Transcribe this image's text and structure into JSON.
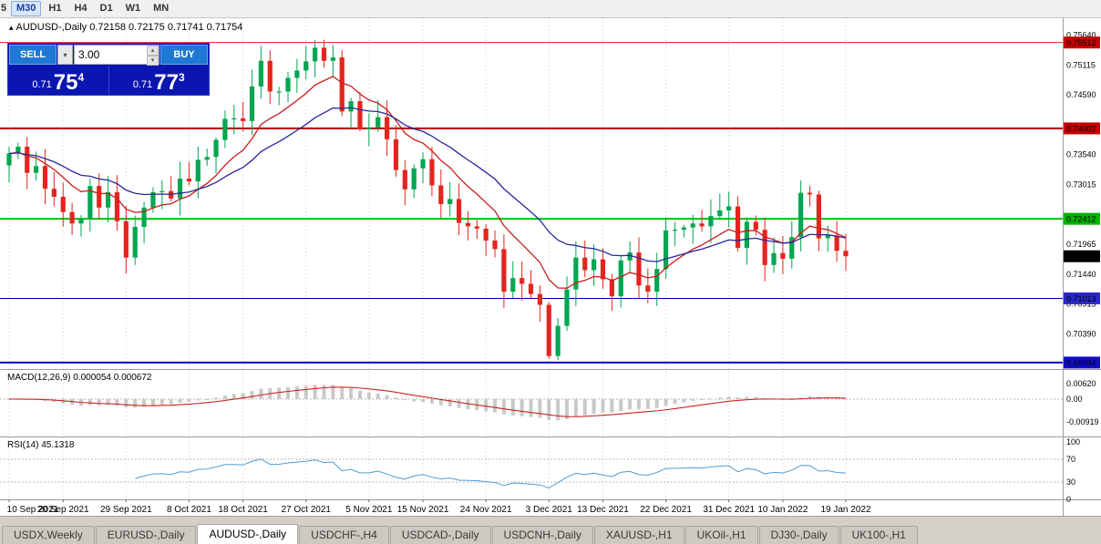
{
  "toolbar": {
    "timeframes": [
      {
        "label": "5",
        "state": "partial"
      },
      {
        "label": "M30",
        "state": "active"
      },
      {
        "label": "H1",
        "state": "normal"
      },
      {
        "label": "H4",
        "state": "normal"
      },
      {
        "label": "D1",
        "state": "normal"
      },
      {
        "label": "W1",
        "state": "normal"
      },
      {
        "label": "MN",
        "state": "normal"
      }
    ]
  },
  "icons": {
    "symbol_marker": "▴",
    "up_arrow": "▴",
    "down_arrow": "▾"
  },
  "chart_header": {
    "text": "AUDUSD-,Daily 0.72158 0.72175 0.71741 0.71754"
  },
  "trade_panel": {
    "sell_label": "SELL",
    "buy_label": "BUY",
    "volume": "3.00",
    "bid": {
      "prefix": "0.71",
      "big": "75",
      "sup": "4"
    },
    "ask": {
      "prefix": "0.71",
      "big": "77",
      "sup": "3"
    }
  },
  "price_axis": {
    "labels": [
      {
        "text": "0.75640",
        "price": 0.7564
      },
      {
        "text": "0.75115",
        "price": 0.75115
      },
      {
        "text": "0.74590",
        "price": 0.7459
      },
      {
        "text": "0.73540",
        "price": 0.7354
      },
      {
        "text": "0.73015",
        "price": 0.73015
      },
      {
        "text": "0.71965",
        "price": 0.71965
      },
      {
        "text": "0.71440",
        "price": 0.7144
      },
      {
        "text": "0.70915",
        "price": 0.70915
      },
      {
        "text": "0.70390",
        "price": 0.7039
      }
    ],
    "badges": [
      {
        "text": "0.75512",
        "price": 0.75512,
        "color": "#c40000"
      },
      {
        "text": "0.74002",
        "price": 0.74002,
        "color": "#c40000"
      },
      {
        "text": "0.72412",
        "price": 0.72412,
        "color": "#00b400"
      },
      {
        "text": "0.71754",
        "price": 0.71754,
        "color": "#000000"
      },
      {
        "text": "0.71013",
        "price": 0.71013,
        "color": "#2a2ac8"
      },
      {
        "text": "0.69884",
        "price": 0.69884,
        "color": "#0f0fc8"
      }
    ]
  },
  "levels": [
    {
      "price": 0.75512,
      "color": "#cc2222",
      "w": 1
    },
    {
      "price": 0.74002,
      "color": "#b30000",
      "w": 2
    },
    {
      "price": 0.72412,
      "color": "#00c800",
      "w": 2
    },
    {
      "price": 0.71013,
      "color": "#000090",
      "w": 1
    },
    {
      "price": 0.69884,
      "color": "#0000c0",
      "w": 2
    }
  ],
  "macd_panel": {
    "label": "MACD(12,26,9) 0.000054 0.000672",
    "axis": [
      {
        "text": "0.00620",
        "value": 0.0062
      },
      {
        "text": "0.00",
        "value": 0
      },
      {
        "text": "-0.00919",
        "value": -0.00919
      }
    ]
  },
  "rsi_panel": {
    "label": "RSI(14) 45.1318",
    "axis": [
      {
        "text": "100",
        "value": 100
      },
      {
        "text": "70",
        "value": 70
      },
      {
        "text": "30",
        "value": 30
      },
      {
        "text": "0",
        "value": 0
      }
    ],
    "guides": [
      70,
      30
    ]
  },
  "date_axis": {
    "labels": [
      {
        "text": "10 Sep 2021",
        "i": 0
      },
      {
        "text": "20 Sep 2021",
        "i": 6
      },
      {
        "text": "29 Sep 2021",
        "i": 13
      },
      {
        "text": "8 Oct 2021",
        "i": 20
      },
      {
        "text": "18 Oct 2021",
        "i": 26
      },
      {
        "text": "27 Oct 2021",
        "i": 33
      },
      {
        "text": "5 Nov 2021",
        "i": 40
      },
      {
        "text": "15 Nov 2021",
        "i": 46
      },
      {
        "text": "24 Nov 2021",
        "i": 53
      },
      {
        "text": "3 Dec 2021",
        "i": 60
      },
      {
        "text": "13 Dec 2021",
        "i": 66
      },
      {
        "text": "22 Dec 2021",
        "i": 73
      },
      {
        "text": "31 Dec 2021",
        "i": 80
      },
      {
        "text": "10 Jan 2022",
        "i": 86
      },
      {
        "text": "19 Jan 2022",
        "i": 93
      }
    ]
  },
  "tabs": [
    {
      "label": "USDX,Weekly",
      "active": false
    },
    {
      "label": "EURUSD-,Daily",
      "active": false
    },
    {
      "label": "AUDUSD-,Daily",
      "active": true
    },
    {
      "label": "USDCHF-,H4",
      "active": false
    },
    {
      "label": "USDCAD-,Daily",
      "active": false
    },
    {
      "label": "USDCNH-,Daily",
      "active": false
    },
    {
      "label": "XAUUSD-,H1",
      "active": false
    },
    {
      "label": "UKOil-,H1",
      "active": false
    },
    {
      "label": "DJ30-,Daily",
      "active": false
    },
    {
      "label": "UK100-,H1",
      "active": false
    }
  ],
  "chart_data": {
    "type": "candlestick",
    "symbol": "AUDUSD-",
    "timeframe": "Daily",
    "last_ohlc": {
      "open": 0.72158,
      "high": 0.72175,
      "low": 0.71741,
      "close": 0.71754
    },
    "bid": 0.71754,
    "ask": 0.71773,
    "price_range_visible": [
      0.6977,
      0.7594
    ],
    "first_open": 0.7335,
    "ohlc_note": "opens equal previous close; wick extents approximated from chart",
    "closes": [
      0.7356,
      0.7368,
      0.7322,
      0.7334,
      0.7294,
      0.728,
      0.7253,
      0.7233,
      0.7242,
      0.7299,
      0.7261,
      0.7288,
      0.7237,
      0.7173,
      0.7227,
      0.7261,
      0.7288,
      0.729,
      0.7277,
      0.7312,
      0.7307,
      0.7345,
      0.735,
      0.738,
      0.7417,
      0.7418,
      0.7413,
      0.7474,
      0.7519,
      0.7465,
      0.7465,
      0.7489,
      0.7502,
      0.7518,
      0.7542,
      0.7519,
      0.7525,
      0.743,
      0.7448,
      0.7399,
      0.7402,
      0.742,
      0.7381,
      0.7327,
      0.7293,
      0.733,
      0.7346,
      0.73,
      0.7267,
      0.7276,
      0.7234,
      0.7228,
      0.7224,
      0.7203,
      0.7188,
      0.7113,
      0.7137,
      0.7127,
      0.7109,
      0.709,
      0.7,
      0.7053,
      0.7117,
      0.7173,
      0.7151,
      0.717,
      0.7135,
      0.7105,
      0.7168,
      0.7182,
      0.7124,
      0.7113,
      0.7153,
      0.7221,
      0.7222,
      0.7226,
      0.7233,
      0.7228,
      0.7246,
      0.7256,
      0.7263,
      0.719,
      0.7236,
      0.7222,
      0.716,
      0.7181,
      0.7171,
      0.7209,
      0.7287,
      0.7284,
      0.7207,
      0.7212,
      0.7185,
      0.71754
    ],
    "colors": {
      "up": "#00a651",
      "down": "#e3251f",
      "ma_fast": "#c81e1e",
      "ma_slow": "#27279b",
      "macd_histogram": "#c9c9c9",
      "macd_signal": "#cc2222",
      "rsi_line": "#4f9bd5"
    },
    "render_params": {
      "ma_periods": [
        10,
        22
      ],
      "macd_params": [
        12,
        26,
        9
      ],
      "rsi_period": 14
    }
  }
}
